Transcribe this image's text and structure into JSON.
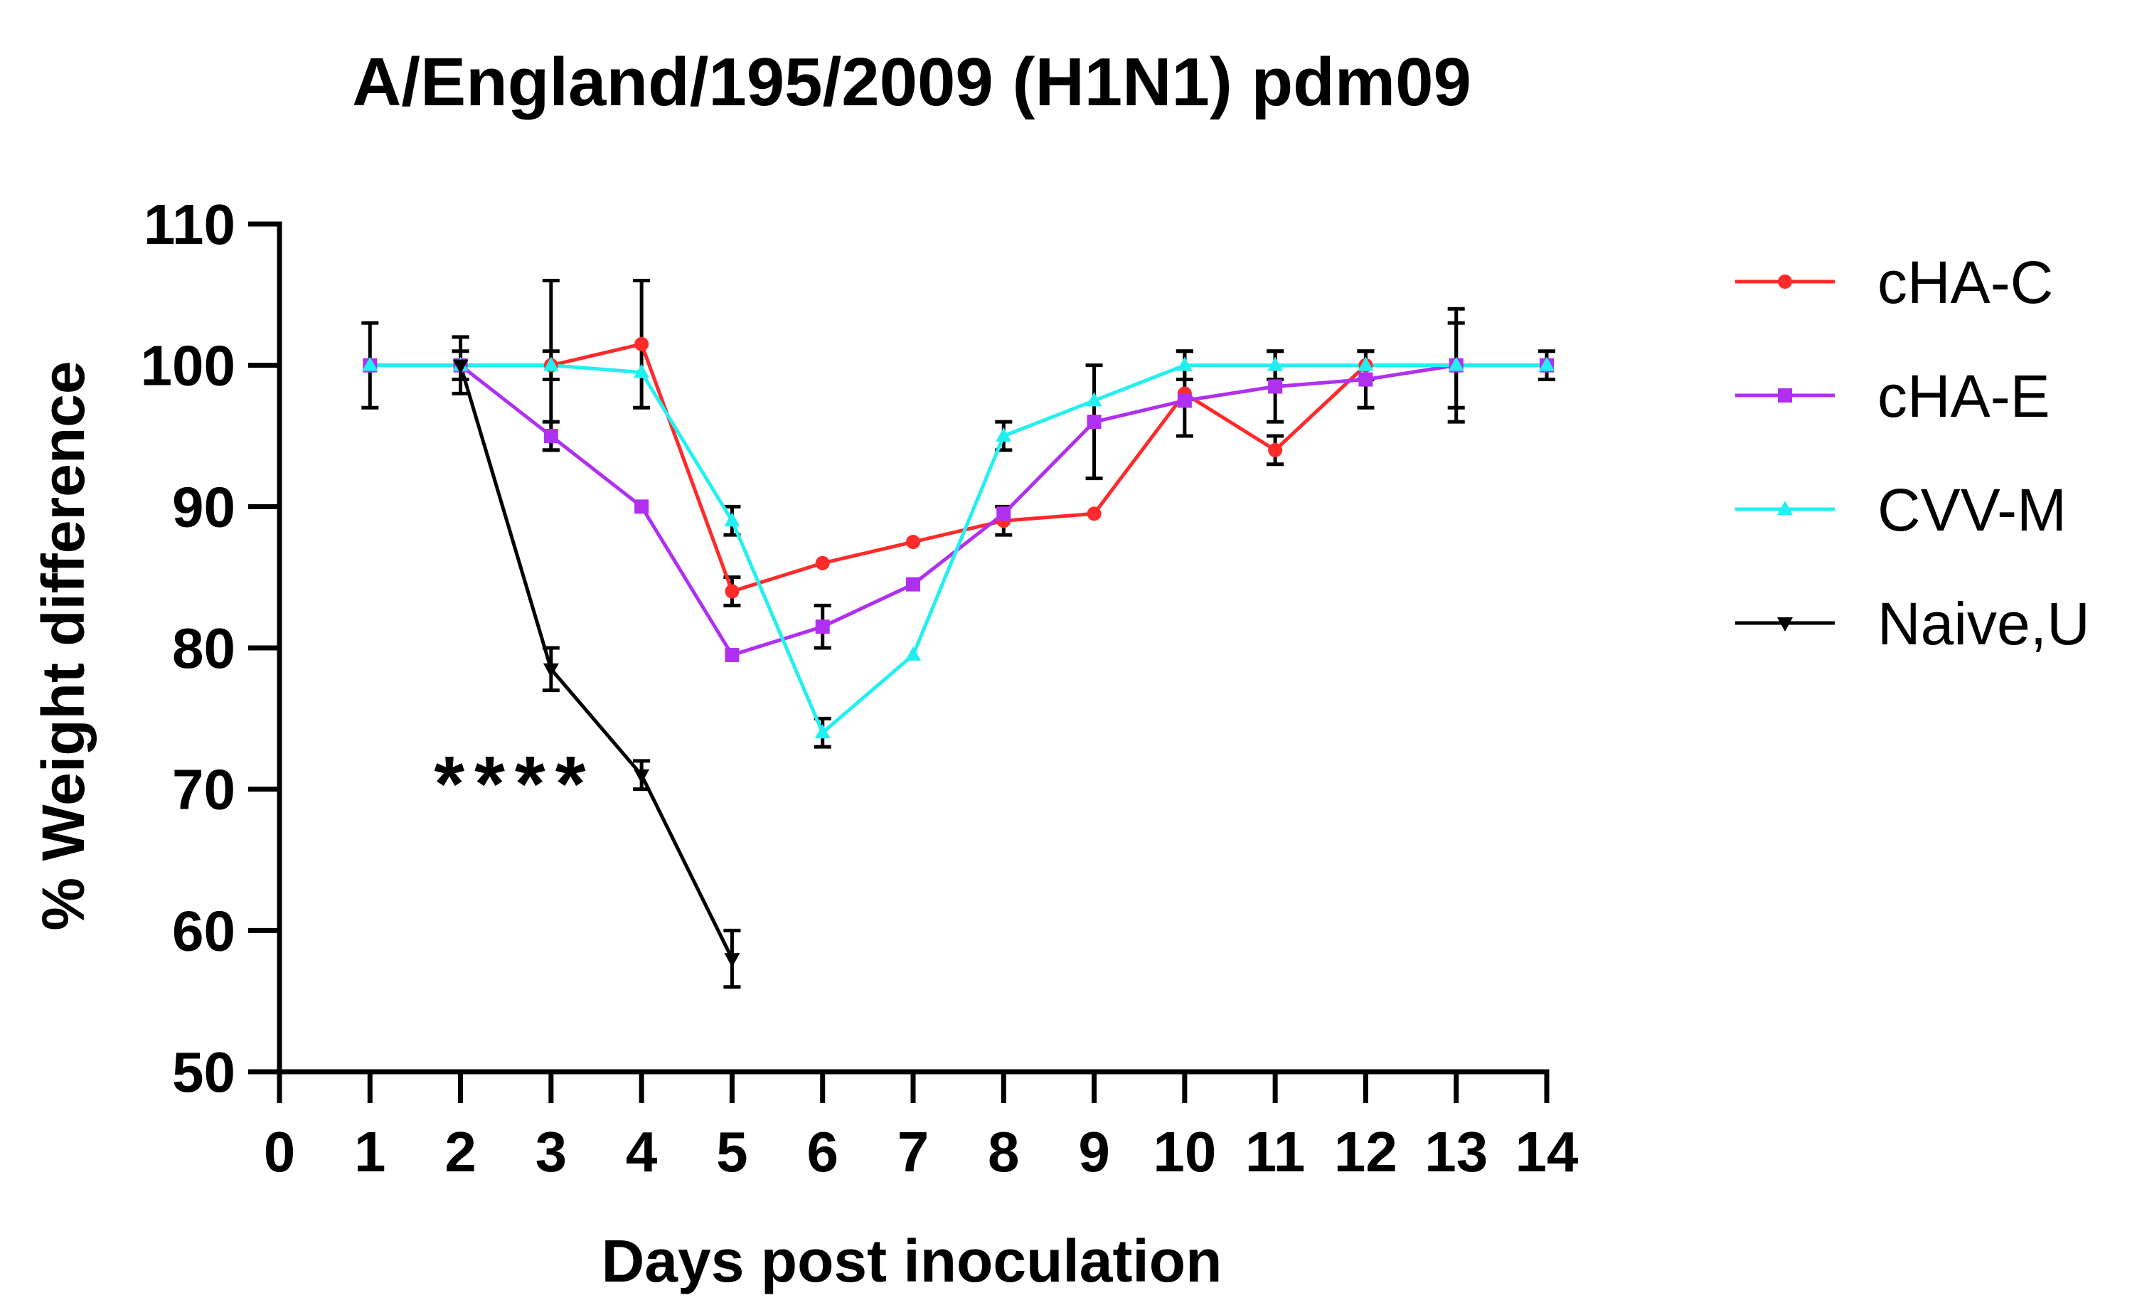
{
  "chart_data": {
    "type": "line",
    "title": "A/England/195/2009 (H1N1) pdm09",
    "xlabel": "Days post inoculation",
    "ylabel": "% Weight difference",
    "xlim": [
      0,
      14
    ],
    "ylim": [
      50,
      110
    ],
    "xticks": [
      0,
      1,
      2,
      3,
      4,
      5,
      6,
      7,
      8,
      9,
      10,
      11,
      12,
      13,
      14
    ],
    "yticks": [
      50,
      60,
      70,
      80,
      90,
      100,
      110
    ],
    "grid": false,
    "legend": "right",
    "series": [
      {
        "name": "cHA-C",
        "color": "#ff2a2a",
        "marker": "circle",
        "x": [
          1,
          2,
          3,
          4,
          5,
          6,
          7,
          8,
          9,
          10,
          11,
          12,
          13,
          14
        ],
        "y": [
          100,
          100,
          100,
          101.5,
          84,
          86,
          87.5,
          89,
          89.5,
          98,
          94,
          100,
          100,
          100
        ],
        "err": [
          3,
          2,
          6,
          4.5,
          1,
          0,
          0,
          1,
          0,
          3,
          1,
          1,
          3,
          1
        ]
      },
      {
        "name": "cHA-E",
        "color": "#b030f0",
        "marker": "square",
        "x": [
          1,
          2,
          3,
          4,
          5,
          6,
          7,
          8,
          9,
          10,
          11,
          12,
          13,
          14
        ],
        "y": [
          100,
          100,
          95,
          90,
          79.5,
          81.5,
          84.5,
          89.5,
          96,
          97.5,
          98.5,
          99,
          100,
          100
        ],
        "err": [
          0,
          0,
          1,
          0,
          0,
          1.5,
          0,
          0,
          4,
          0,
          2.5,
          2,
          4,
          0
        ]
      },
      {
        "name": "CVV-M",
        "color": "#22f0f0",
        "marker": "triangle",
        "x": [
          1,
          2,
          3,
          4,
          5,
          6,
          7,
          8,
          9,
          10,
          11,
          12,
          13,
          14
        ],
        "y": [
          100,
          100,
          100,
          99.5,
          89,
          74,
          79.5,
          95,
          97.5,
          100,
          100,
          100,
          100,
          100
        ],
        "err": [
          0,
          0,
          1,
          0,
          1,
          1,
          0,
          1,
          0,
          1,
          1,
          0,
          0,
          0
        ]
      },
      {
        "name": "Naive,U",
        "color": "#000000",
        "marker": "triangle-down",
        "x": [
          2,
          3,
          4,
          5
        ],
        "y": [
          100,
          78.5,
          71,
          58
        ],
        "err": [
          1,
          1.5,
          1,
          2
        ]
      }
    ],
    "annotations": [
      {
        "text": "****",
        "x": 2.6,
        "y": 71.5
      }
    ]
  }
}
